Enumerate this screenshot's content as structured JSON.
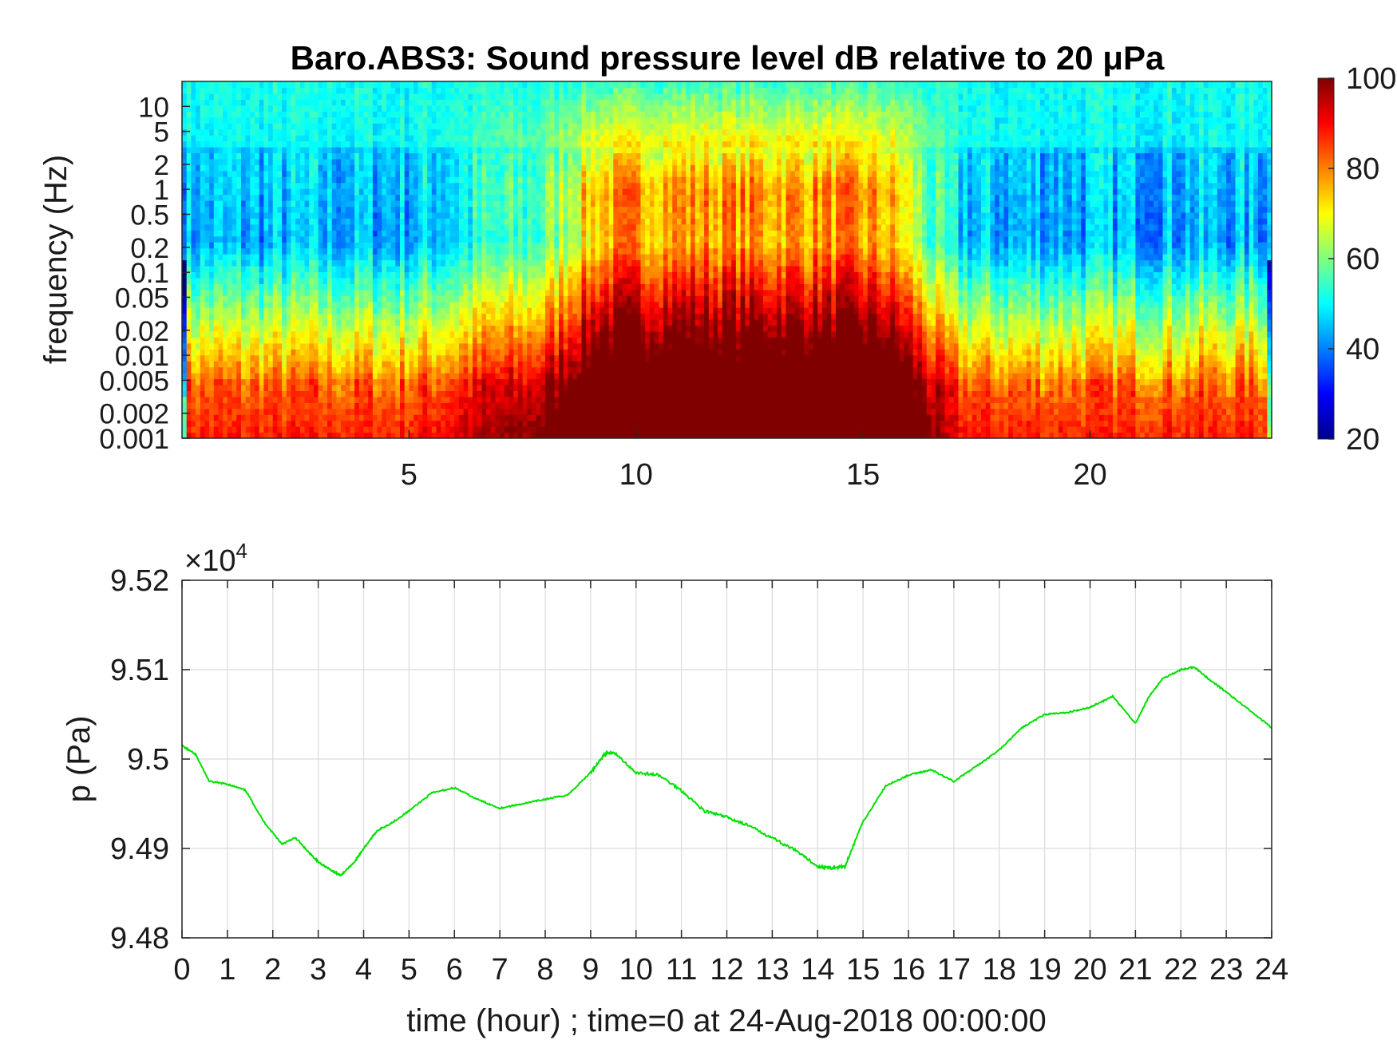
{
  "chart_data": [
    {
      "type": "heatmap",
      "title": "Baro.ABS3: Sound pressure level dB relative to 20 μPa",
      "ylabel": "frequency (Hz)",
      "yscale": "log",
      "ylim": [
        0.001,
        20
      ],
      "xlim": [
        0,
        24
      ],
      "x_ticks": [
        "5",
        "10",
        "15",
        "20"
      ],
      "y_ticks": [
        "0.001",
        "0.002",
        "0.005",
        "0.01",
        "0.02",
        "0.05",
        "0.1",
        "0.2",
        "0.5",
        "1",
        "2",
        "5",
        "10"
      ],
      "colormap": "jet",
      "colorbar": {
        "range": [
          20,
          100
        ],
        "ticks": [
          "20",
          "40",
          "60",
          "80",
          "100"
        ]
      },
      "grid": false,
      "description_levels": {
        "quiet_hours": [
          0,
          6,
          16.3,
          24
        ],
        "loud_hours": [
          8.5,
          16.3
        ]
      }
    },
    {
      "type": "line",
      "xlabel": "time (hour) ; time=0 at 24-Aug-2018 00:00:00",
      "ylabel": "p (Pa)",
      "y_multiplier": "×10",
      "y_exponent": "4",
      "xlim": [
        0,
        24
      ],
      "ylim": [
        94800,
        95200
      ],
      "x_ticks": [
        "0",
        "1",
        "2",
        "3",
        "4",
        "5",
        "6",
        "7",
        "8",
        "9",
        "10",
        "11",
        "12",
        "13",
        "14",
        "15",
        "16",
        "17",
        "18",
        "19",
        "20",
        "21",
        "22",
        "23",
        "24"
      ],
      "y_ticks": [
        "9.48",
        "9.49",
        "9.5",
        "9.51",
        "9.52"
      ],
      "grid": true,
      "series_color": "#00e000",
      "x": [
        0,
        0.3,
        0.6,
        1.0,
        1.4,
        1.8,
        2.2,
        2.5,
        2.8,
        3.0,
        3.3,
        3.5,
        3.8,
        4.0,
        4.3,
        4.6,
        5.0,
        5.5,
        6.0,
        6.5,
        7.0,
        7.5,
        8.0,
        8.5,
        9.0,
        9.3,
        9.5,
        10.0,
        10.5,
        11.0,
        11.5,
        12.0,
        12.5,
        13.0,
        13.5,
        14.0,
        14.3,
        14.6,
        15.0,
        15.5,
        16.0,
        16.5,
        17.0,
        17.5,
        18.0,
        18.5,
        19.0,
        19.5,
        20.0,
        20.5,
        21.0,
        21.3,
        21.6,
        22.0,
        22.3,
        22.6,
        23.0,
        23.5,
        24.0
      ],
      "y": [
        95015,
        95005,
        94975,
        94972,
        94965,
        94930,
        94905,
        94912,
        94895,
        94885,
        94875,
        94870,
        94885,
        94900,
        94920,
        94928,
        94942,
        94962,
        94968,
        94955,
        94945,
        94950,
        94955,
        94960,
        94985,
        95005,
        95008,
        94985,
        94982,
        94965,
        94942,
        94935,
        94925,
        94912,
        94898,
        94880,
        94878,
        94880,
        94930,
        94970,
        94982,
        94988,
        94975,
        94992,
        95010,
        95035,
        95050,
        95052,
        95058,
        95070,
        95040,
        95070,
        95090,
        95100,
        95103,
        95090,
        95075,
        95055,
        95035
      ]
    }
  ]
}
